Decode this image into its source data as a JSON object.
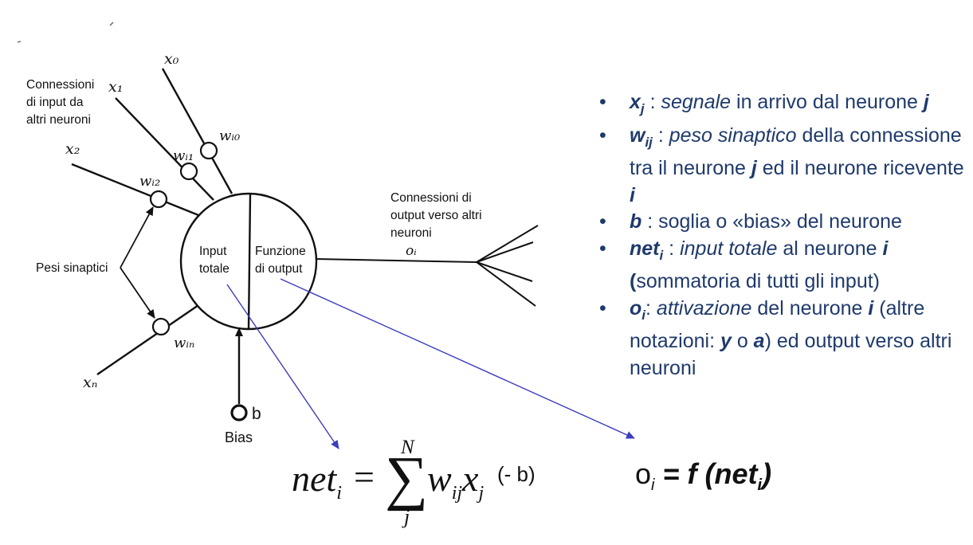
{
  "diagram": {
    "inputs": [
      {
        "label": "x₀",
        "weight": "wᵢ₀"
      },
      {
        "label": "x₁",
        "weight": "wᵢ₁"
      },
      {
        "label": "x₂",
        "weight": "wᵢ₂"
      },
      {
        "label": "xₙ",
        "weight": "wᵢₙ"
      }
    ],
    "input_connections_label": [
      "Connessioni",
      "di input da",
      "altri neuroni"
    ],
    "synaptic_weights_label": "Pesi sinaptici",
    "neuron_left_label": [
      "Input",
      "totale"
    ],
    "neuron_right_label": [
      "Funzione",
      "di output"
    ],
    "output_connections_label": [
      "Connessioni di",
      "output verso altri",
      "neuroni"
    ],
    "output_label": "oᵢ",
    "bias_symbol": "b",
    "bias_label": "Bias",
    "arrow_color": "#3d3dbf"
  },
  "bullets": [
    {
      "sym": "x",
      "sub": "j",
      "sep": " : ",
      "parts": [
        {
          "t": "segnale",
          "s": "ital"
        },
        {
          "t": " in arrivo dal neurone ",
          "s": ""
        },
        {
          "t": "j",
          "s": "sym"
        }
      ]
    },
    {
      "sym": "w",
      "sub": "ij",
      "sep": " : ",
      "parts": [
        {
          "t": "peso sinaptico",
          "s": "ital"
        },
        {
          "t": " della connessione tra il neurone ",
          "s": ""
        },
        {
          "t": "j",
          "s": "sym"
        },
        {
          "t": " ed il neurone ricevente ",
          "s": ""
        },
        {
          "t": "i",
          "s": "sym"
        }
      ]
    },
    {
      "sym": "b",
      "sub": "",
      "sep": " : ",
      "parts": [
        {
          "t": "soglia o «bias» del neurone",
          "s": ""
        }
      ]
    },
    {
      "sym": "net",
      "sub": "i",
      "sep": " : ",
      "parts": [
        {
          "t": "input totale",
          "s": "ital"
        },
        {
          "t": " al neurone ",
          "s": ""
        },
        {
          "t": "i",
          "s": "sym"
        },
        {
          "t": " ",
          "s": ""
        },
        {
          "t": "(",
          "s": "bold"
        },
        {
          "t": "sommatoria di tutti gli input)",
          "s": ""
        }
      ]
    },
    {
      "sym": "o",
      "sub": "i",
      "sep": ": ",
      "parts": [
        {
          "t": "attivazione",
          "s": "ital"
        },
        {
          "t": " del neurone ",
          "s": ""
        },
        {
          "t": "i",
          "s": "sym"
        },
        {
          "t": " (altre notazioni: ",
          "s": ""
        },
        {
          "t": "y",
          "s": "sym"
        },
        {
          "t": " o ",
          "s": ""
        },
        {
          "t": "a",
          "s": "sym"
        },
        {
          "t": ") ed output verso altri neuroni",
          "s": ""
        }
      ]
    }
  ],
  "formula_net": {
    "lhs": "net",
    "lhs_sub": "i",
    "eq": "=",
    "sum_top": "N",
    "sum_symbol": "∑",
    "sum_bottom": "j",
    "term": "w",
    "term_sub1": "ij",
    "term2": "x",
    "term_sub2": "j",
    "bias_term": "(- b)"
  },
  "formula_o": {
    "lhs": "o",
    "lhs_sub": "i",
    "rhs": " = f (net",
    "rhs_sub": "i",
    "rhs_end": ")"
  }
}
